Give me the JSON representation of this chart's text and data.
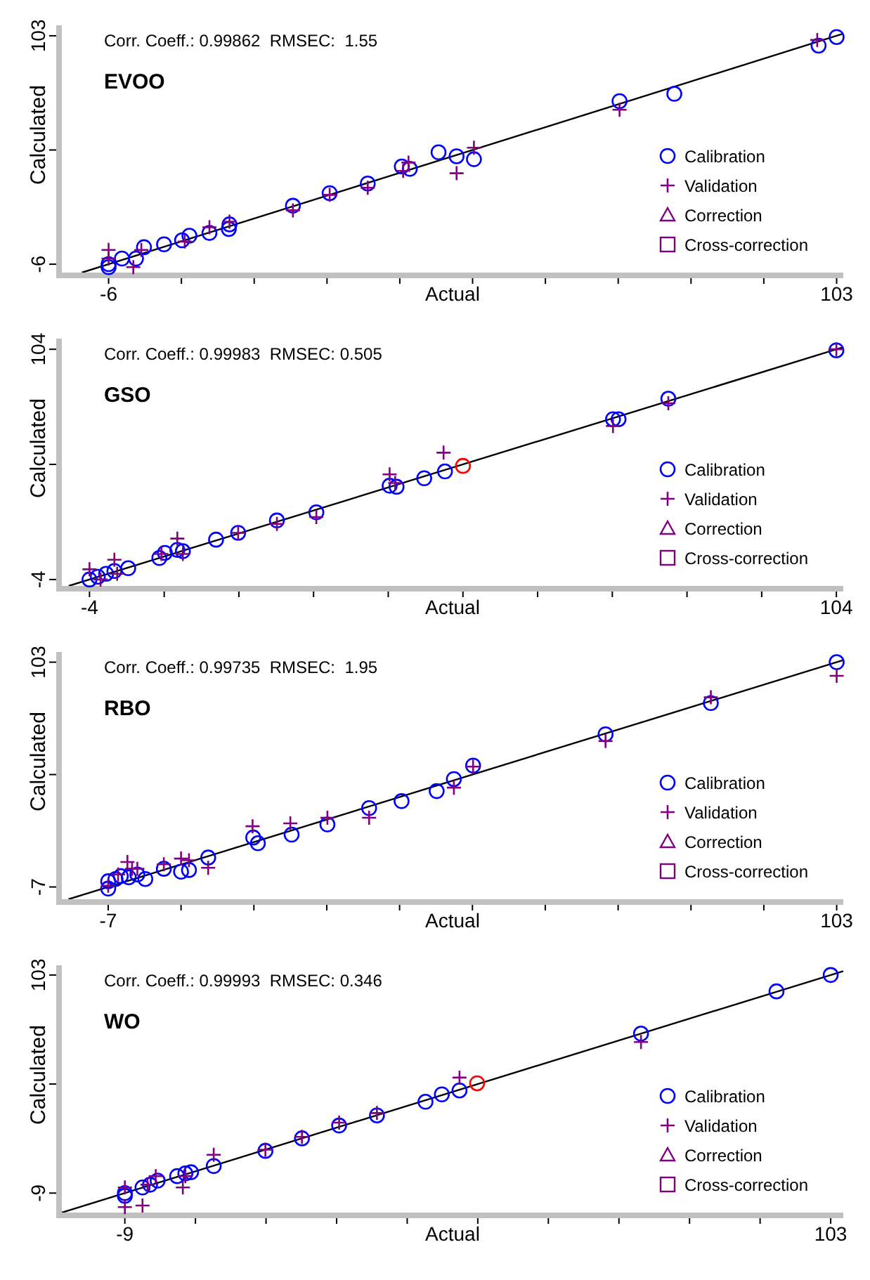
{
  "chart_data": [
    {
      "type": "scatter",
      "title": "EVOO",
      "xlabel": "Actual",
      "ylabel": "Calculated",
      "annotations": [
        "Corr. Coeff.: 0.99862  RMSEC:  1.55"
      ],
      "legend": "right",
      "xlim": [
        -13,
        104
      ],
      "ylim": [
        -10,
        108
      ],
      "xticks": [
        -6,
        {
          "value": 4.9,
          "label": null
        },
        {
          "value": 15.8,
          "label": null
        },
        {
          "value": 26.7,
          "label": null
        },
        {
          "value": 37.6,
          "label": null
        },
        {
          "value": 48.5,
          "label": null
        },
        {
          "value": 59.4,
          "label": null
        },
        {
          "value": 70.3,
          "label": null
        },
        {
          "value": 81.2,
          "label": null
        },
        {
          "value": 92.1,
          "label": null
        },
        103
      ],
      "yticks": [
        -6,
        {
          "value": 48.5,
          "label": null
        },
        103
      ],
      "series": [
        {
          "type": "line",
          "color": "#000000",
          "x": [
            -10,
            104
          ],
          "values": [
            -10,
            104
          ]
        },
        {
          "name": "Calibration",
          "type": "scatter",
          "marker": "circle",
          "color": "#0000ff",
          "x": [
            -6,
            -6,
            -4,
            -1.9,
            -0.7,
            2.3,
            5,
            6.1,
            9.1,
            12,
            12.1,
            21.6,
            27.1,
            32.8,
            37.9,
            39.1,
            43.4,
            46.1,
            48.7,
            70.5,
            78.7,
            100.3,
            103
          ],
          "values": [
            -6,
            -7.4,
            -3.3,
            -3.3,
            2.1,
            3.5,
            5.4,
            7.6,
            8.9,
            10.8,
            13,
            21.9,
            27.9,
            32.5,
            40.6,
            39.5,
            47.4,
            45.5,
            44.1,
            71.8,
            75.3,
            98.3,
            102.4
          ]
        },
        {
          "name": "Validation",
          "type": "scatter",
          "marker": "cross",
          "color": "#800080",
          "x": [
            -6,
            -6,
            -2.3,
            -1.1,
            5.4,
            9.1,
            12.1,
            21.6,
            27.1,
            32.8,
            38.1,
            38.9,
            46.1,
            48.7,
            70.5,
            100.1
          ],
          "values": [
            0.8,
            -3.3,
            -7.4,
            0.8,
            4.8,
            11.6,
            14.3,
            19.7,
            27.1,
            30.5,
            38.5,
            42.5,
            37.4,
            49.6,
            67.7,
            101
          ]
        },
        {
          "name": "Correction",
          "type": "scatter",
          "marker": "triangle",
          "color": "#800080"
        },
        {
          "name": "Cross-correction",
          "type": "scatter",
          "marker": "square",
          "color": "#800080"
        }
      ]
    },
    {
      "type": "scatter",
      "title": "GSO",
      "xlabel": "Actual",
      "ylabel": "Calculated",
      "annotations": [
        "Corr. Coeff.: 0.99983  RMSEC: 0.505"
      ],
      "legend": "right",
      "xlim": [
        -8,
        105
      ],
      "ylim": [
        -7,
        109
      ],
      "xticks": [
        -4,
        {
          "value": 6.8,
          "label": null
        },
        {
          "value": 17.6,
          "label": null
        },
        {
          "value": 28.4,
          "label": null
        },
        {
          "value": 39.2,
          "label": null
        },
        {
          "value": 50,
          "label": null
        },
        {
          "value": 60.8,
          "label": null
        },
        {
          "value": 71.6,
          "label": null
        },
        {
          "value": 82.4,
          "label": null
        },
        {
          "value": 93.2,
          "label": null
        },
        104
      ],
      "yticks": [
        -4,
        {
          "value": 50,
          "label": null
        },
        104
      ],
      "series": [
        {
          "type": "line",
          "color": "#000000",
          "x": [
            -7,
            105
          ],
          "values": [
            -7,
            105
          ]
        },
        {
          "name": "Calibration",
          "type": "scatter",
          "marker": "circle",
          "color": "#0000ff",
          "x": [
            -4,
            -2.8,
            -1.6,
            -0.4,
            1.6,
            6.1,
            6.9,
            8.7,
            9.5,
            14.3,
            17.5,
            23.1,
            28.8,
            39.4,
            40.4,
            44.4,
            47.4,
            71.7,
            72.5,
            79.7,
            104
          ],
          "values": [
            -4,
            -2.7,
            -1.3,
            0,
            1.3,
            6.1,
            8.5,
            9.9,
            9.3,
            14.7,
            17.9,
            23.7,
            27.5,
            40,
            39.5,
            43.5,
            46.7,
            71.2,
            71.2,
            80.8,
            103.5
          ]
        },
        {
          "type": "scatter",
          "marker": "circle",
          "color": "#ff0000",
          "x": [
            50
          ],
          "values": [
            49.3
          ]
        },
        {
          "name": "Validation",
          "type": "scatter",
          "marker": "cross",
          "color": "#800080",
          "x": [
            -4,
            -2.4,
            -0.4,
            0,
            6.4,
            8.7,
            9.5,
            17.5,
            23.1,
            28.8,
            39.4,
            40.2,
            47.2,
            71.7,
            79.7,
            104
          ],
          "values": [
            0.8,
            -4,
            5.3,
            -1.3,
            8,
            15.2,
            8,
            17.9,
            22.1,
            25.3,
            45.3,
            41.3,
            55.5,
            68,
            78.7,
            104
          ]
        },
        {
          "name": "Correction",
          "type": "scatter",
          "marker": "triangle",
          "color": "#800080"
        },
        {
          "name": "Cross-correction",
          "type": "scatter",
          "marker": "square",
          "color": "#800080"
        }
      ]
    },
    {
      "type": "scatter",
      "title": "RBO",
      "xlabel": "Actual",
      "ylabel": "Calculated",
      "annotations": [
        "Corr. Coeff.: 0.99735  RMSEC:  1.95"
      ],
      "legend": "right",
      "xlim": [
        -14,
        104
      ],
      "ylim": [
        -13,
        108
      ],
      "xticks": [
        -7,
        {
          "value": 4,
          "label": null
        },
        {
          "value": 15,
          "label": null
        },
        {
          "value": 26,
          "label": null
        },
        {
          "value": 37,
          "label": null
        },
        {
          "value": 48,
          "label": null
        },
        {
          "value": 59,
          "label": null
        },
        {
          "value": 70,
          "label": null
        },
        {
          "value": 81,
          "label": null
        },
        {
          "value": 92,
          "label": null
        },
        103
      ],
      "yticks": [
        -7,
        {
          "value": 48,
          "label": null
        },
        103
      ],
      "series": [
        {
          "type": "line",
          "color": "#000000",
          "x": [
            -13,
            104
          ],
          "values": [
            -13,
            104
          ]
        },
        {
          "name": "Calibration",
          "type": "scatter",
          "marker": "circle",
          "color": "#0000ff",
          "x": [
            -7,
            -7,
            -5.9,
            -5.1,
            -3.9,
            -2.6,
            -1.4,
            1.4,
            4,
            5.2,
            8.1,
            14.9,
            15.6,
            20.7,
            26.1,
            32.4,
            37.3,
            42.6,
            45.2,
            48.1,
            68.1,
            84,
            103
          ],
          "values": [
            -7.8,
            -4.2,
            -3.1,
            -1.7,
            -2.3,
            -0.9,
            -3.1,
            1.9,
            0.5,
            1.3,
            7.4,
            17.2,
            14.4,
            18.6,
            23.6,
            31.6,
            35,
            39.9,
            45.8,
            52.4,
            67.7,
            83,
            103
          ]
        },
        {
          "name": "Validation",
          "type": "scatter",
          "marker": "cross",
          "color": "#800080",
          "x": [
            -7,
            -5.5,
            -4.1,
            -3.4,
            -2.6,
            1.4,
            4,
            5.2,
            8.1,
            14.8,
            20.5,
            26.1,
            32.4,
            45.2,
            48.1,
            68.1,
            84,
            103
          ],
          "values": [
            -6.4,
            -0.9,
            5.2,
            1.9,
            1.9,
            4.1,
            6.9,
            6.1,
            2.4,
            22.7,
            24.1,
            26.9,
            26.9,
            41.6,
            51.9,
            64.4,
            85.8,
            96.3
          ]
        },
        {
          "name": "Correction",
          "type": "scatter",
          "marker": "triangle",
          "color": "#800080"
        },
        {
          "name": "Cross-correction",
          "type": "scatter",
          "marker": "square",
          "color": "#800080"
        }
      ]
    },
    {
      "type": "scatter",
      "title": "WO",
      "xlabel": "Actual",
      "ylabel": "Calculated",
      "annotations": [
        "Corr. Coeff.: 0.99993  RMSEC: 0.346"
      ],
      "legend": "right",
      "xlim": [
        -19,
        105
      ],
      "ylim": [
        -19,
        108
      ],
      "xticks": [
        -9,
        {
          "value": 2.2,
          "label": null
        },
        {
          "value": 13.4,
          "label": null
        },
        {
          "value": 24.6,
          "label": null
        },
        {
          "value": 35.8,
          "label": null
        },
        {
          "value": 47,
          "label": null
        },
        {
          "value": 58.2,
          "label": null
        },
        {
          "value": 69.4,
          "label": null
        },
        {
          "value": 80.6,
          "label": null
        },
        {
          "value": 91.8,
          "label": null
        },
        103
      ],
      "yticks": [
        -9,
        {
          "value": 47,
          "label": null
        },
        103
      ],
      "series": [
        {
          "type": "line",
          "color": "#000000",
          "x": [
            -19,
            105
          ],
          "values": [
            -19,
            105
          ]
        },
        {
          "name": "Calibration",
          "type": "scatter",
          "marker": "circle",
          "color": "#0000ff",
          "x": [
            -9,
            -9,
            -6.2,
            -5,
            -3.8,
            -0.7,
            0.6,
            1.5,
            5.1,
            13.3,
            19.1,
            25,
            31,
            38.7,
            41.3,
            44.1,
            72.9,
            94.4,
            103
          ],
          "values": [
            -9,
            -10.4,
            -6.1,
            -4.7,
            -2.6,
            -0.3,
            1.1,
            1.7,
            4.9,
            12.7,
            19.1,
            25.7,
            30.9,
            37.9,
            41.7,
            43.7,
            72.9,
            94.6,
            103
          ]
        },
        {
          "type": "scatter",
          "marker": "circle",
          "color": "#ff0000",
          "x": [
            46.9
          ],
          "values": [
            47.4
          ]
        },
        {
          "name": "Validation",
          "type": "scatter",
          "marker": "cross",
          "color": "#800080",
          "x": [
            -9,
            -9,
            -6.2,
            -5.4,
            -4.1,
            0.2,
            0.6,
            5.1,
            13.3,
            19.1,
            25,
            31,
            44.1,
            72.9
          ],
          "values": [
            -6.1,
            -16.2,
            -15.4,
            -4.7,
            -0.3,
            -6.1,
            -0.3,
            10.7,
            13.3,
            19.9,
            27.2,
            32.1,
            50.3,
            68.6
          ]
        },
        {
          "name": "Correction",
          "type": "scatter",
          "marker": "triangle",
          "color": "#800080"
        },
        {
          "name": "Cross-correction",
          "type": "scatter",
          "marker": "square",
          "color": "#800080"
        }
      ]
    }
  ]
}
